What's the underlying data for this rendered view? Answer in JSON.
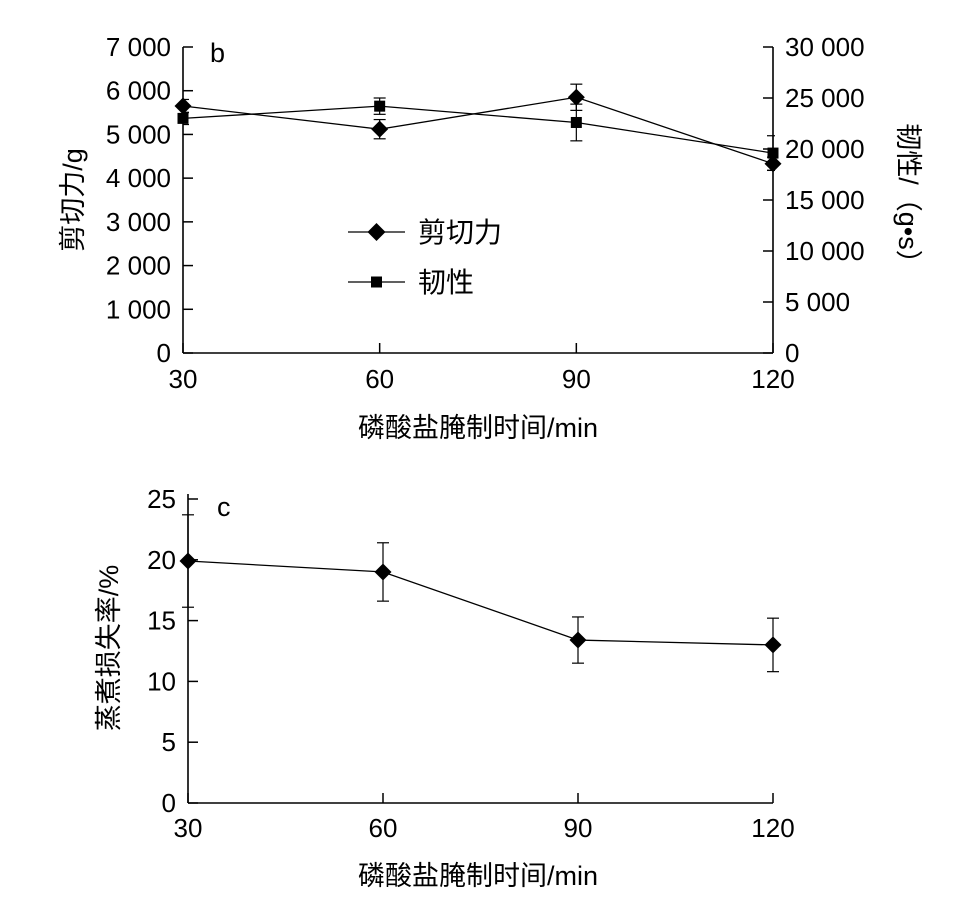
{
  "chart_data": [
    {
      "type": "line",
      "panel_label": "b",
      "x": [
        30,
        60,
        90,
        120
      ],
      "x_ticks": [
        "30",
        "60",
        "90",
        "120"
      ],
      "xlabel": "磷酸盐腌制时间/min",
      "xlim": [
        30,
        120
      ],
      "ylabel": "剪切力/g",
      "ylim": [
        0,
        7000
      ],
      "y_ticks": [
        "0",
        "1 000",
        "2 000",
        "3 000",
        "4 000",
        "5 000",
        "6 000",
        "7 000"
      ],
      "y2label": "韧性/（g•s）",
      "y2lim": [
        0,
        30000
      ],
      "y2_ticks": [
        "0",
        "5 000",
        "10 000",
        "15 000",
        "20 000",
        "25 000",
        "30 000"
      ],
      "grid": false,
      "legend_position": "center-left",
      "series": [
        {
          "name": "剪切力",
          "axis": "left",
          "marker": "diamond",
          "values": [
            5650,
            5120,
            5850,
            4330
          ],
          "errors": [
            150,
            220,
            300,
            150
          ]
        },
        {
          "name": "韧性",
          "axis": "right",
          "marker": "square",
          "values": [
            23000,
            24200,
            22600,
            19600
          ],
          "errors": [
            600,
            800,
            1800,
            1700
          ]
        }
      ]
    },
    {
      "type": "line",
      "panel_label": "c",
      "x": [
        30,
        60,
        90,
        120
      ],
      "x_ticks": [
        "30",
        "60",
        "90",
        "120"
      ],
      "xlabel": "磷酸盐腌制时间/min",
      "xlim": [
        30,
        120
      ],
      "ylabel": "蒸煮损失率/%",
      "ylim": [
        0,
        25
      ],
      "y_ticks": [
        "0",
        "5",
        "10",
        "15",
        "20",
        "25"
      ],
      "grid": false,
      "series": [
        {
          "marker": "diamond",
          "values": [
            19.9,
            19.0,
            13.4,
            13.0
          ],
          "errors": [
            3.8,
            2.4,
            1.9,
            2.2
          ]
        }
      ]
    }
  ]
}
